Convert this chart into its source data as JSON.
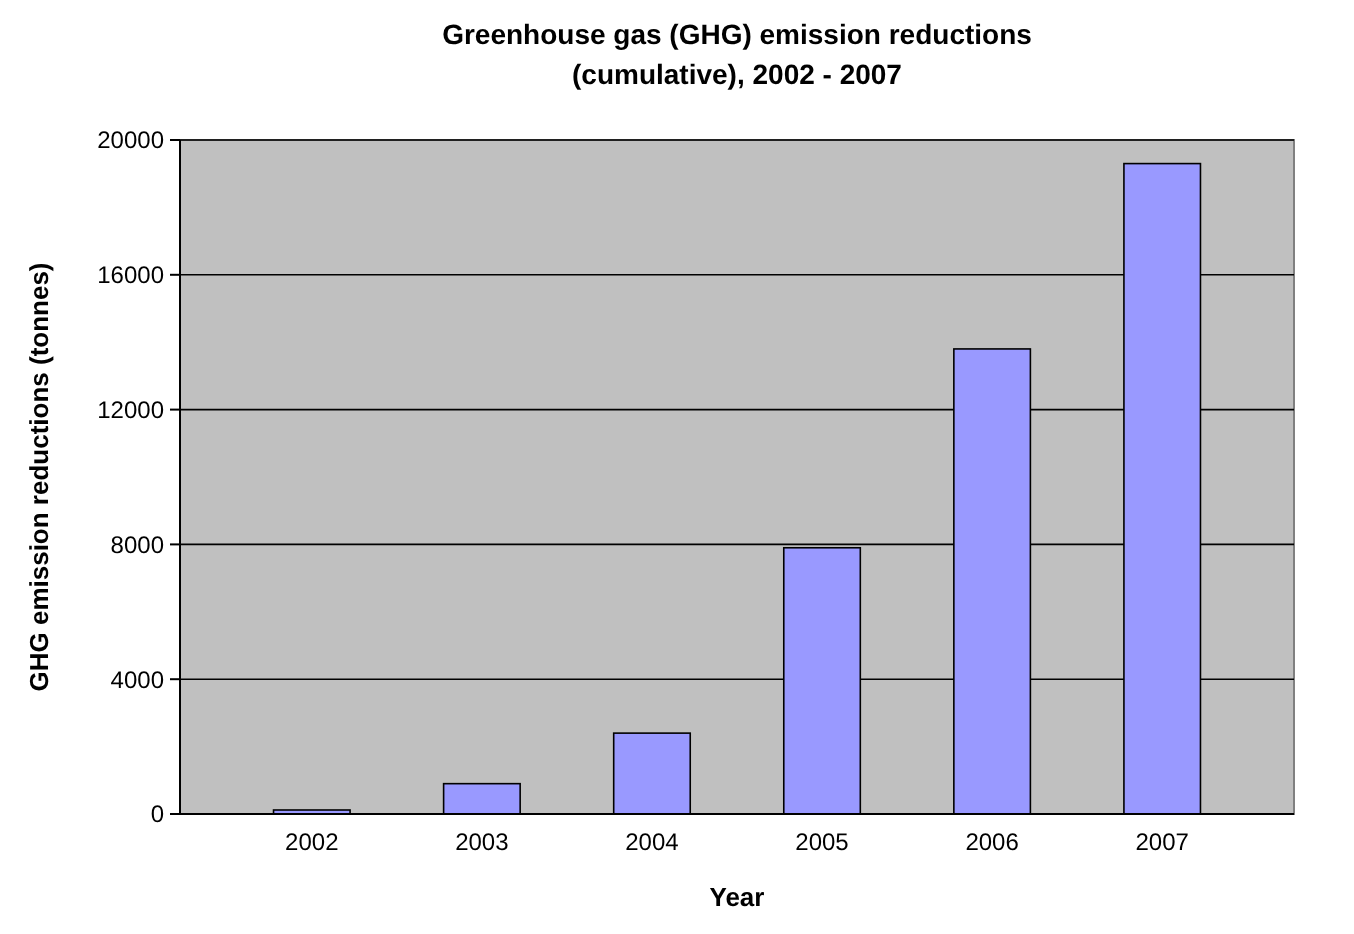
{
  "chart_data": {
    "type": "bar",
    "title": "Greenhouse gas (GHG) emission reductions (cumulative), 2002 - 2007",
    "xlabel": "Year",
    "ylabel": "GHG emission reductions (tonnes)",
    "categories": [
      "2002",
      "2003",
      "2004",
      "2005",
      "2006",
      "2007"
    ],
    "values": [
      0,
      900,
      2400,
      7900,
      13800,
      19300
    ],
    "color": "#9999ff",
    "ylim": [
      0,
      20000
    ],
    "yticks": [
      0,
      4000,
      8000,
      12000,
      16000,
      20000
    ],
    "grid": "y"
  }
}
